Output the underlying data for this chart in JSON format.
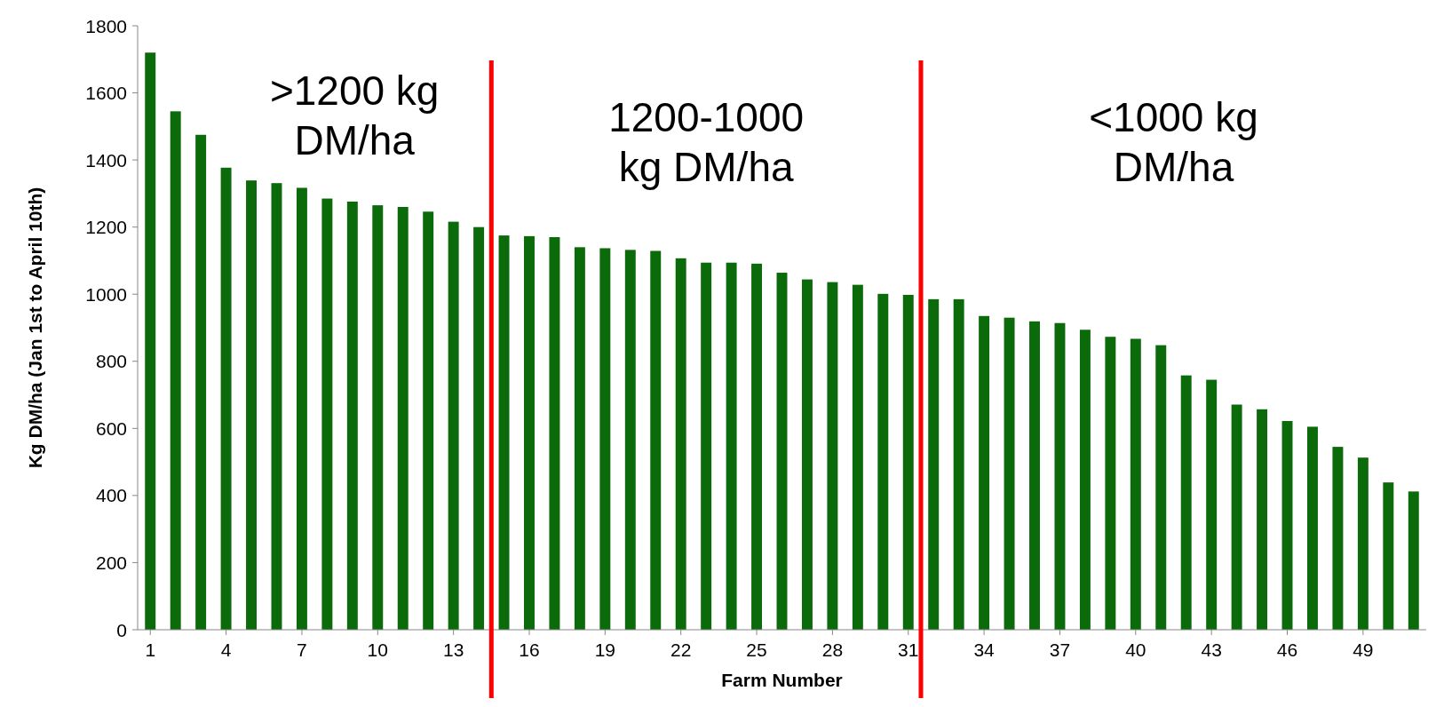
{
  "chart_data": {
    "type": "bar",
    "xlabel": "Farm Number",
    "ylabel": "Kg DM/ha (Jan 1st to April 10th)",
    "x": [
      1,
      2,
      3,
      4,
      5,
      6,
      7,
      8,
      9,
      10,
      11,
      12,
      13,
      14,
      15,
      16,
      17,
      18,
      19,
      20,
      21,
      22,
      23,
      24,
      25,
      26,
      27,
      28,
      29,
      30,
      31,
      32,
      33,
      34,
      35,
      36,
      37,
      38,
      39,
      40,
      41,
      42,
      43,
      44,
      45,
      46,
      47,
      48,
      49,
      50,
      51
    ],
    "values": [
      1720,
      1545,
      1475,
      1377,
      1339,
      1331,
      1317,
      1285,
      1276,
      1265,
      1260,
      1246,
      1216,
      1200,
      1175,
      1173,
      1170,
      1140,
      1137,
      1132,
      1129,
      1107,
      1094,
      1094,
      1091,
      1064,
      1044,
      1036,
      1028,
      1001,
      998,
      985,
      985,
      935,
      930,
      919,
      914,
      894,
      873,
      867,
      848,
      758,
      745,
      671,
      657,
      622,
      605,
      545,
      513,
      439,
      412
    ],
    "color": "#0b6b0b",
    "xlim": [
      0.5,
      51.5
    ],
    "xticks": [
      1,
      4,
      7,
      10,
      13,
      16,
      19,
      22,
      25,
      28,
      31,
      34,
      37,
      40,
      43,
      46,
      49
    ],
    "ylim": [
      0,
      1800
    ],
    "yticks": [
      0,
      200,
      400,
      600,
      800,
      1000,
      1200,
      1400,
      1600,
      1800
    ],
    "grid": false,
    "ref_lines": [
      {
        "axis": "x",
        "value": 14.5,
        "color": "#ff0000"
      },
      {
        "axis": "x",
        "value": 31.5,
        "color": "#ff0000"
      }
    ],
    "annotations": [
      ">1200 kg\nDM/ha",
      "1200-1000\nkg DM/ha",
      "<1000 kg\nDM/ha"
    ]
  }
}
